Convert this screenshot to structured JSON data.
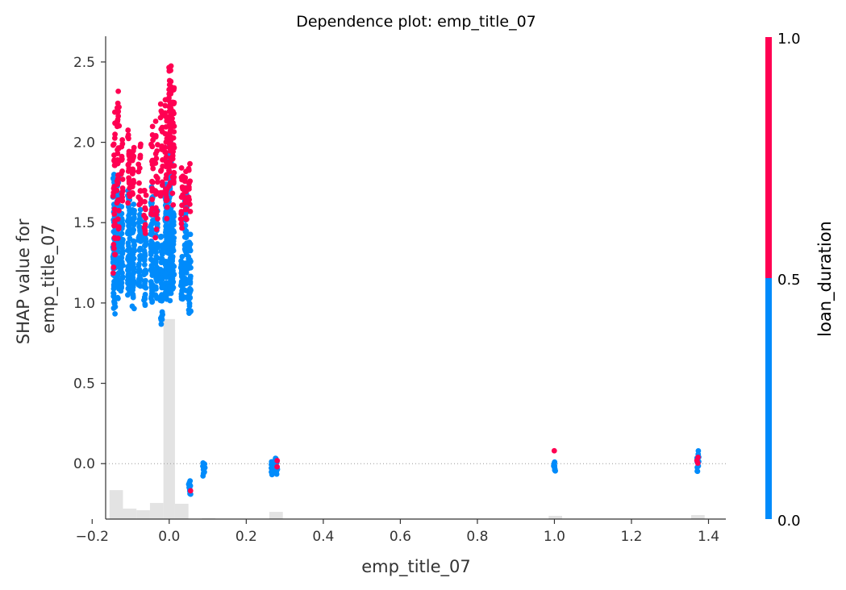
{
  "chart_data": {
    "type": "scatter",
    "title": "Dependence plot: emp_title_07",
    "xlabel": "emp_title_07",
    "ylabel_lines": [
      "SHAP value for",
      "emp_title_07"
    ],
    "xlim": [
      -0.165,
      1.445
    ],
    "ylim": [
      -0.345,
      2.66
    ],
    "x_ticks": [
      -0.2,
      0.0,
      0.2,
      0.4,
      0.6,
      0.8,
      1.0,
      1.2,
      1.4
    ],
    "x_tick_labels": [
      "−0.2",
      "0.0",
      "0.2",
      "0.4",
      "0.6",
      "0.8",
      "1.0",
      "1.2",
      "1.4"
    ],
    "y_ticks": [
      0.0,
      0.5,
      1.0,
      1.5,
      2.0,
      2.5
    ],
    "y_tick_labels": [
      "0.0",
      "0.5",
      "1.0",
      "1.5",
      "2.0",
      "2.5"
    ],
    "zero_line": 0.0,
    "colorbar": {
      "label": "loan_duration",
      "tick_labels": [
        "0.0",
        "0.5",
        "1.0"
      ],
      "low_color": "#008bfb",
      "high_color": "#ff0052",
      "split": 0.5
    },
    "histogram": {
      "color": "#e3e3e3",
      "bins": [
        {
          "x0": -0.155,
          "x1": -0.12,
          "y": -0.165
        },
        {
          "x0": -0.12,
          "x1": -0.085,
          "y": -0.28
        },
        {
          "x0": -0.085,
          "x1": -0.05,
          "y": -0.29
        },
        {
          "x0": -0.05,
          "x1": -0.015,
          "y": -0.245
        },
        {
          "x0": -0.015,
          "x1": 0.015,
          "y": 0.9
        },
        {
          "x0": 0.015,
          "x1": 0.05,
          "y": -0.25
        },
        {
          "x0": 0.085,
          "x1": 0.12,
          "y": -0.34
        },
        {
          "x0": 0.26,
          "x1": 0.295,
          "y": -0.3
        },
        {
          "x0": 0.985,
          "x1": 1.02,
          "y": -0.325
        },
        {
          "x0": 1.355,
          "x1": 1.39,
          "y": -0.32
        }
      ]
    },
    "series": [
      {
        "name": "loan_duration < 0.5",
        "color": "#008bfb",
        "clusters": [
          {
            "x": -0.143,
            "y_min": 0.87,
            "y_max": 1.86,
            "n": 70
          },
          {
            "x": -0.133,
            "y_min": 0.99,
            "y_max": 1.8,
            "n": 60
          },
          {
            "x": -0.123,
            "y_min": 1.05,
            "y_max": 1.6,
            "n": 40
          },
          {
            "x": -0.105,
            "y_min": 1.0,
            "y_max": 1.75,
            "n": 55
          },
          {
            "x": -0.093,
            "y_min": 0.95,
            "y_max": 1.65,
            "n": 50
          },
          {
            "x": -0.077,
            "y_min": 1.05,
            "y_max": 1.6,
            "n": 40
          },
          {
            "x": -0.063,
            "y_min": 0.95,
            "y_max": 1.55,
            "n": 45
          },
          {
            "x": -0.045,
            "y_min": 0.95,
            "y_max": 1.75,
            "n": 55
          },
          {
            "x": -0.033,
            "y_min": 1.0,
            "y_max": 1.6,
            "n": 45
          },
          {
            "x": -0.02,
            "y_min": 0.81,
            "y_max": 1.45,
            "n": 40
          },
          {
            "x": -0.008,
            "y_min": 0.98,
            "y_max": 1.75,
            "n": 70
          },
          {
            "x": 0.002,
            "y_min": 1.0,
            "y_max": 2.05,
            "n": 90
          },
          {
            "x": 0.01,
            "y_min": 1.05,
            "y_max": 1.6,
            "n": 50
          },
          {
            "x": 0.033,
            "y_min": 1.0,
            "y_max": 1.3,
            "n": 30
          },
          {
            "x": 0.043,
            "y_min": 0.98,
            "y_max": 1.75,
            "n": 55
          },
          {
            "x": 0.053,
            "y_min": 0.89,
            "y_max": 1.45,
            "n": 45
          },
          {
            "x": 0.053,
            "y_min": -0.2,
            "y_max": -0.1,
            "n": 10
          },
          {
            "x": 0.09,
            "y_min": -0.08,
            "y_max": 0.01,
            "n": 10
          },
          {
            "x": 0.268,
            "y_min": -0.07,
            "y_max": 0.02,
            "n": 10
          },
          {
            "x": 0.278,
            "y_min": -0.07,
            "y_max": 0.05,
            "n": 10
          },
          {
            "x": 1.0,
            "y_min": -0.05,
            "y_max": 0.02,
            "n": 10
          },
          {
            "x": 1.372,
            "y_min": -0.06,
            "y_max": 0.08,
            "n": 10
          }
        ]
      },
      {
        "name": "loan_duration > 0.5",
        "color": "#ff0052",
        "clusters": [
          {
            "x": -0.143,
            "y_min": 1.12,
            "y_max": 2.2,
            "n": 30
          },
          {
            "x": -0.133,
            "y_min": 1.4,
            "y_max": 2.38,
            "n": 35
          },
          {
            "x": -0.123,
            "y_min": 1.6,
            "y_max": 2.05,
            "n": 15
          },
          {
            "x": -0.105,
            "y_min": 1.6,
            "y_max": 2.11,
            "n": 20
          },
          {
            "x": -0.093,
            "y_min": 1.65,
            "y_max": 2.0,
            "n": 15
          },
          {
            "x": -0.077,
            "y_min": 1.55,
            "y_max": 2.02,
            "n": 15
          },
          {
            "x": -0.063,
            "y_min": 1.4,
            "y_max": 1.75,
            "n": 12
          },
          {
            "x": -0.045,
            "y_min": 1.5,
            "y_max": 2.1,
            "n": 20
          },
          {
            "x": -0.033,
            "y_min": 1.4,
            "y_max": 2.15,
            "n": 20
          },
          {
            "x": -0.02,
            "y_min": 1.6,
            "y_max": 2.28,
            "n": 20
          },
          {
            "x": -0.008,
            "y_min": 1.5,
            "y_max": 2.3,
            "n": 30
          },
          {
            "x": 0.002,
            "y_min": 1.7,
            "y_max": 2.52,
            "n": 50
          },
          {
            "x": 0.01,
            "y_min": 1.6,
            "y_max": 2.4,
            "n": 30
          },
          {
            "x": 0.033,
            "y_min": 1.4,
            "y_max": 1.85,
            "n": 15
          },
          {
            "x": 0.043,
            "y_min": 1.5,
            "y_max": 1.82,
            "n": 15
          },
          {
            "x": 0.053,
            "y_min": 1.55,
            "y_max": 1.88,
            "n": 12
          },
          {
            "x": 0.053,
            "y_min": -0.18,
            "y_max": -0.16,
            "n": 1
          },
          {
            "x": 0.278,
            "y_min": -0.02,
            "y_max": 0.02,
            "n": 2
          },
          {
            "x": 1.0,
            "y_min": 0.08,
            "y_max": 0.08,
            "n": 1
          },
          {
            "x": 1.372,
            "y_min": 0.0,
            "y_max": 0.04,
            "n": 3
          }
        ]
      }
    ]
  }
}
